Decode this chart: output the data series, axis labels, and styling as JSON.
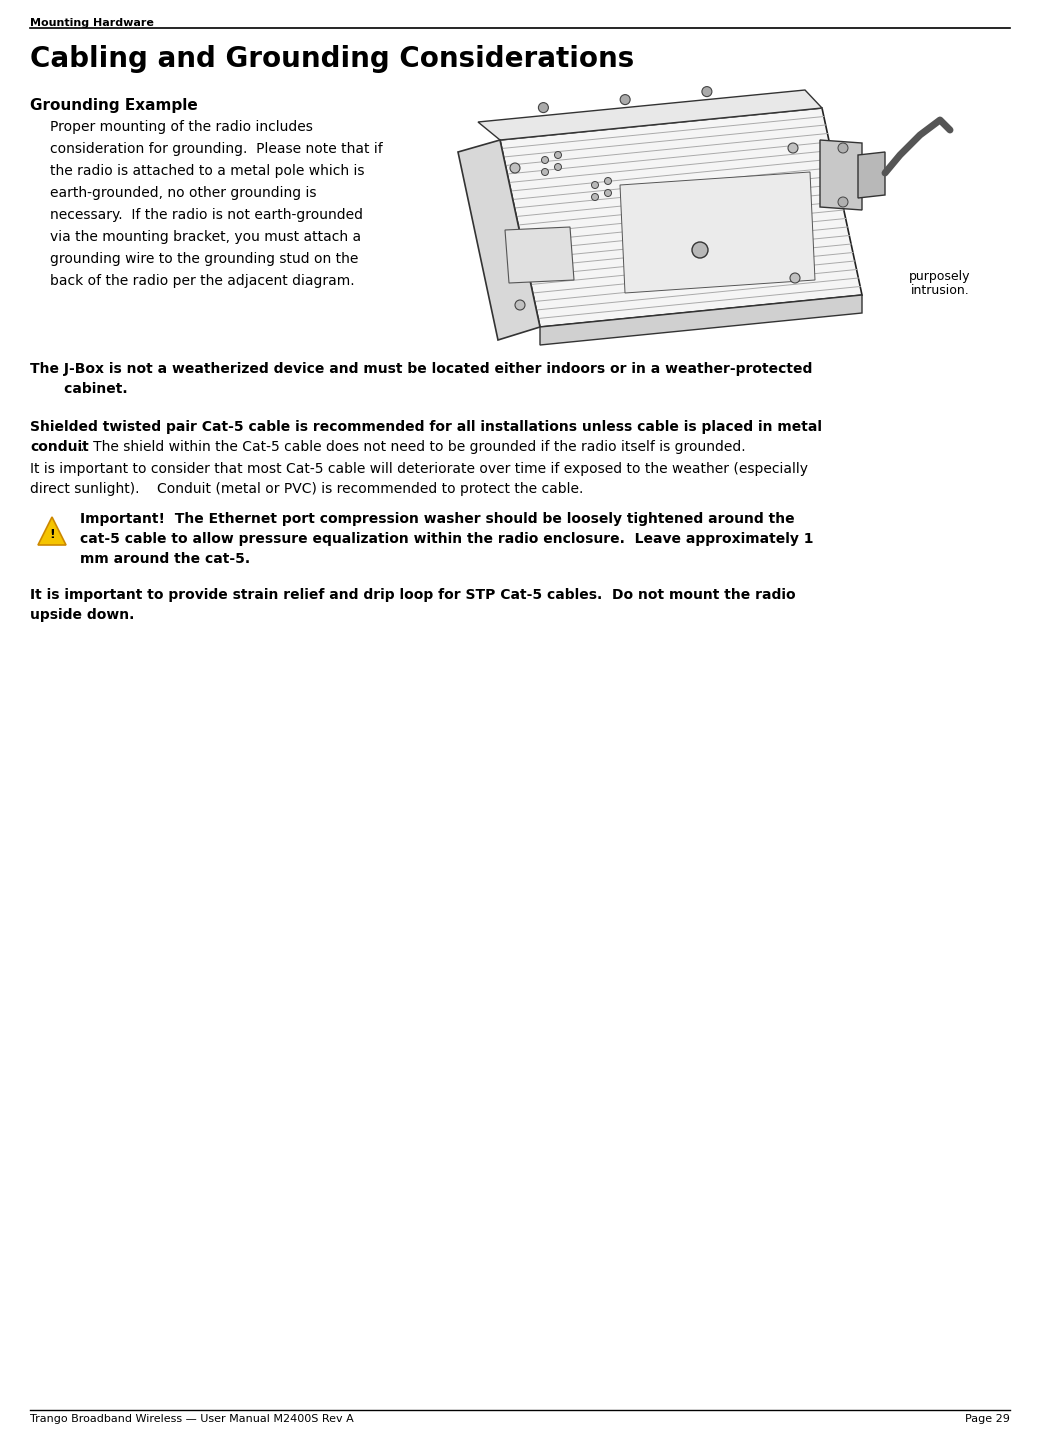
{
  "bg_color": "#ffffff",
  "header_text": "Mounting Hardware",
  "footer_left": "Trango Broadband Wireless — User Manual M2400S Rev A",
  "footer_right": "Page 29",
  "title": "Cabling and Grounding Considerations",
  "section1_heading": "Grounding Example",
  "section1_body_lines": [
    "Proper mounting of the radio includes",
    "consideration for grounding.  Please note that if",
    "the radio is attached to a metal pole which is",
    "earth-grounded, no other grounding is",
    "necessary.  If the radio is not earth-grounded",
    "via the mounting bracket, you must attach a",
    "grounding wire to the grounding stud on the",
    "back of the radio per the adjacent diagram."
  ],
  "purposely_line1": "purposely",
  "purposely_line2": "intrusion.",
  "jbox_line1": "The J-Box is not a weatherized device and must be located either indoors or in a weather-protected",
  "jbox_line2": "       cabinet.",
  "shielded_bold1": "Shielded twisted pair Cat-5 cable is recommended for all installations unless cable is placed in metal",
  "shielded_bold2": "conduit",
  "shielded_normal2": ".  The shield within the Cat-5 cable does not need to be grounded if the radio itself is grounded.",
  "deteriorate_line1": "It is important to consider that most Cat-5 cable will deteriorate over time if exposed to the weather (especially",
  "deteriorate_line2": "direct sunlight).    Conduit (metal or PVC) is recommended to protect the cable.",
  "important_line1": "Important!  The Ethernet port compression washer should be loosely tightened around the",
  "important_line2": "cat-5 cable to allow pressure equalization within the radio enclosure.  Leave approximately 1",
  "important_line3": "mm around the cat-5.",
  "strain_line1": "It is important to provide strain relief and drip loop for STP Cat-5 cables.  Do not mount the radio",
  "strain_line2": "upside down.",
  "text_color": "#000000",
  "line_color": "#000000"
}
